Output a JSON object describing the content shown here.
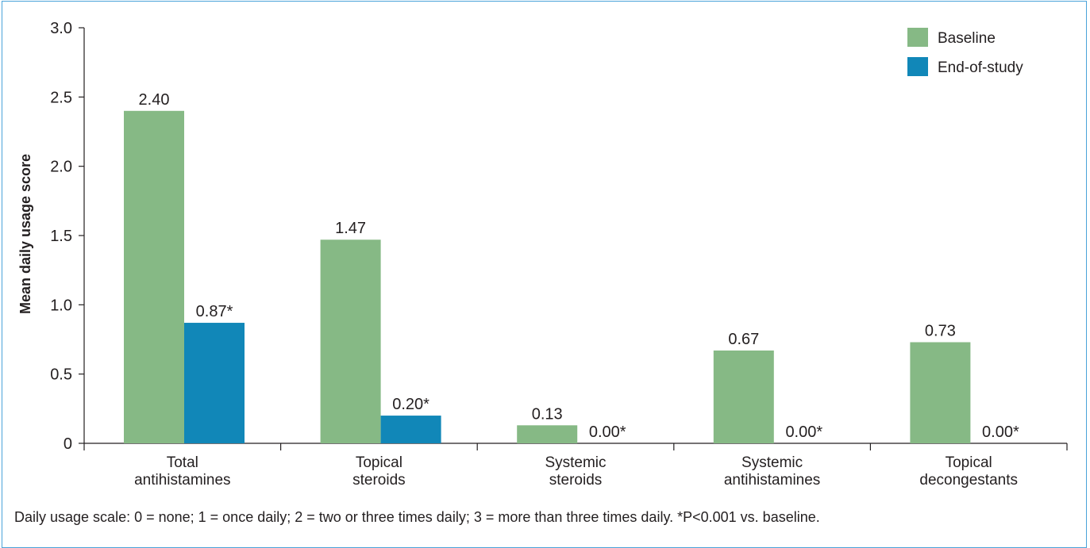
{
  "chart_data": {
    "type": "bar",
    "ylabel": "Mean daily usage score",
    "xlabel": "",
    "ylim": [
      0,
      3.0
    ],
    "yticks": [
      "0",
      "0.5",
      "1.0",
      "1.5",
      "2.0",
      "2.5",
      "3.0"
    ],
    "yticks_values": [
      0,
      0.5,
      1.0,
      1.5,
      2.0,
      2.5,
      3.0
    ],
    "categories": [
      [
        "Total",
        "antihistamines"
      ],
      [
        "Topical",
        "steroids"
      ],
      [
        "Systemic",
        "steroids"
      ],
      [
        "Systemic",
        "antihistamines"
      ],
      [
        "Topical",
        "decongestants"
      ]
    ],
    "series": [
      {
        "name": "Baseline",
        "color": "#86b985",
        "values": [
          2.4,
          1.47,
          0.13,
          0.67,
          0.73
        ],
        "labels": [
          "2.40",
          "1.47",
          "0.13",
          "0.67",
          "0.73"
        ]
      },
      {
        "name": "End-of-study",
        "color": "#1187b8",
        "values": [
          0.87,
          0.2,
          0.0,
          0.0,
          0.0
        ],
        "labels": [
          "0.87*",
          "0.20*",
          "0.00*",
          "0.00*",
          "0.00*"
        ]
      }
    ],
    "legend_position": "top-right",
    "grid": false
  },
  "footnote": "Daily usage scale: 0 = none; 1 = once daily; 2 = two or three times daily; 3 = more than three times daily. *P<0.001 vs. baseline."
}
